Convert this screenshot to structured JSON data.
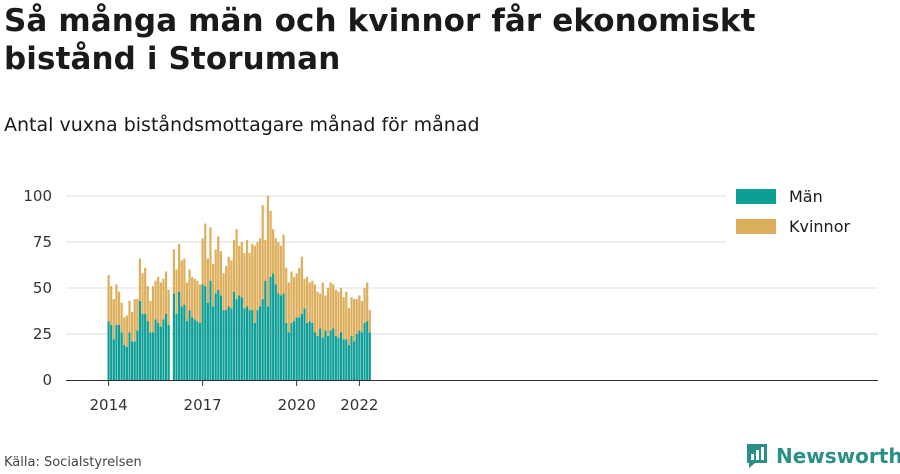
{
  "title": "Så många män och kvinnor får ekonomiskt bistånd i Storuman",
  "subtitle": "Antal vuxna biståndsmottagare månad för månad",
  "source": "Källa: Socialstyrelsen",
  "brand": "Newsworthy",
  "colors": {
    "man": "#0e9e96",
    "kvinnor": "#ddae5b",
    "grid": "#dedede",
    "axis": "#333333"
  },
  "chart_data": {
    "type": "bar",
    "stacked": true,
    "x_start": "2014-01",
    "x_end": "2022-06",
    "xticks": [
      {
        "label": "2014",
        "month": "2014-01"
      },
      {
        "label": "2017",
        "month": "2017-01"
      },
      {
        "label": "2020",
        "month": "2020-01"
      },
      {
        "label": "2022",
        "month": "2022-01"
      }
    ],
    "yticks": [
      0,
      25,
      50,
      75,
      100
    ],
    "ylim": [
      0,
      100
    ],
    "grid": true,
    "legend_position": "top-right",
    "series": [
      {
        "name": "Män",
        "color": "#0e9e96",
        "values": [
          32,
          30,
          22,
          30,
          30,
          26,
          19,
          18,
          26,
          21,
          21,
          27,
          43,
          36,
          36,
          32,
          26,
          26,
          33,
          31,
          29,
          33,
          36,
          30,
          null,
          47,
          36,
          48,
          40,
          41,
          32,
          38,
          34,
          33,
          32,
          31,
          52,
          51,
          42,
          54,
          40,
          47,
          49,
          46,
          38,
          38,
          40,
          39,
          48,
          44,
          46,
          45,
          39,
          40,
          38,
          38,
          31,
          38,
          40,
          44,
          54,
          40,
          56,
          58,
          52,
          47,
          46,
          47,
          31,
          26,
          31,
          32,
          34,
          34,
          36,
          39,
          31,
          32,
          31,
          26,
          24,
          28,
          23,
          27,
          24,
          27,
          28,
          24,
          23,
          26,
          22,
          22,
          19,
          24,
          21,
          25,
          27,
          26,
          31,
          32,
          26
        ],
        "totals": [
          57,
          51,
          44,
          52,
          48,
          42,
          34,
          35,
          43,
          37,
          44,
          44,
          66,
          58,
          61,
          51,
          43,
          51,
          54,
          56,
          53,
          55,
          59,
          49,
          null,
          71,
          60,
          74,
          65,
          66,
          53,
          60,
          56,
          55,
          54,
          52,
          77,
          85,
          66,
          83,
          63,
          71,
          78,
          70,
          58,
          62,
          67,
          65,
          76,
          82,
          73,
          75,
          69,
          76,
          69,
          74,
          73,
          75,
          77,
          95,
          76,
          100,
          92,
          82,
          77,
          75,
          73,
          79,
          61,
          53,
          59,
          56,
          58,
          61,
          67,
          55,
          56,
          53,
          54,
          52,
          48,
          47,
          53,
          46,
          50,
          53,
          52,
          49,
          48,
          50,
          45,
          48,
          39,
          45,
          44,
          44,
          46,
          43,
          50,
          53,
          38
        ]
      },
      {
        "name": "Kvinnor",
        "color": "#ddae5b",
        "values": [
          25,
          21,
          22,
          22,
          18,
          16,
          15,
          17,
          17,
          16,
          23,
          17,
          23,
          22,
          25,
          19,
          17,
          25,
          21,
          25,
          24,
          22,
          23,
          19,
          null,
          24,
          24,
          26,
          25,
          25,
          21,
          22,
          22,
          22,
          22,
          21,
          25,
          34,
          24,
          29,
          23,
          24,
          29,
          24,
          20,
          24,
          27,
          26,
          28,
          38,
          27,
          30,
          30,
          36,
          31,
          36,
          42,
          37,
          37,
          51,
          22,
          60,
          36,
          24,
          25,
          28,
          27,
          32,
          30,
          27,
          28,
          24,
          24,
          27,
          31,
          16,
          25,
          21,
          23,
          26,
          24,
          19,
          30,
          19,
          26,
          26,
          24,
          25,
          25,
          24,
          23,
          26,
          20,
          21,
          23,
          19,
          19,
          17,
          19,
          21,
          12
        ]
      }
    ]
  }
}
